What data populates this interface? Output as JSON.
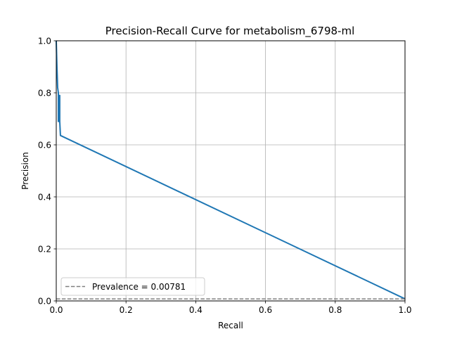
{
  "chart_data": {
    "type": "line",
    "title": "Precision-Recall Curve for metabolism_6798-ml",
    "xlabel": "Recall",
    "ylabel": "Precision",
    "xlim": [
      0.0,
      1.0
    ],
    "ylim": [
      0.0,
      1.0
    ],
    "xticks": [
      "0.0",
      "0.2",
      "0.4",
      "0.6",
      "0.8",
      "1.0"
    ],
    "yticks": [
      "0.0",
      "0.2",
      "0.4",
      "0.6",
      "0.8",
      "1.0"
    ],
    "grid": true,
    "legend_position": "lower-left",
    "series": [
      {
        "color": "#1f77b4",
        "style": "solid",
        "x": [
          0.0,
          0.002,
          0.004,
          0.006,
          0.006,
          0.008,
          0.008,
          0.01,
          0.01,
          0.012,
          1.0
        ],
        "y": [
          1.0,
          0.9,
          0.82,
          0.8,
          0.69,
          0.69,
          0.79,
          0.79,
          0.69,
          0.636,
          0.008
        ]
      },
      {
        "name": "Prevalence = 0.00781",
        "color": "#808080",
        "style": "dashed",
        "x": [
          0.0,
          1.0
        ],
        "y": [
          0.00781,
          0.00781
        ]
      }
    ]
  }
}
